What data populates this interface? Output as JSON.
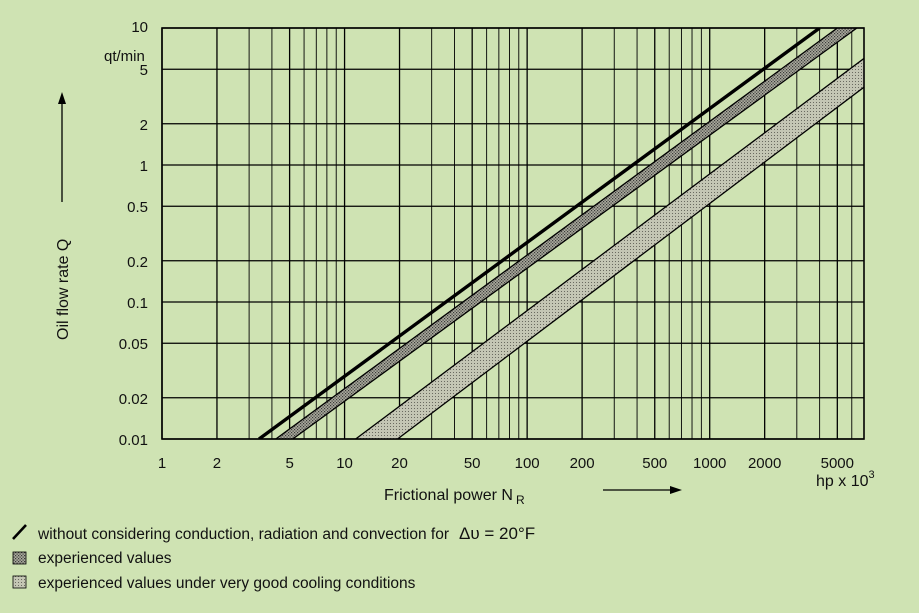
{
  "chart_data": {
    "type": "line",
    "x_scale": "log",
    "y_scale": "log",
    "xlim": [
      1,
      7000
    ],
    "ylim": [
      0.01,
      10
    ],
    "grid": true,
    "x_ticks": [
      "1",
      "2",
      "5",
      "10",
      "20",
      "50",
      "100",
      "200",
      "500",
      "1000",
      "2000",
      "5000"
    ],
    "y_ticks": [
      "10",
      "5",
      "2",
      "1",
      "0.5",
      "0.2",
      "0.1",
      "0.05",
      "0.02",
      "0.01"
    ],
    "x_minor_ticks": [
      3,
      4,
      6,
      7,
      8,
      9,
      30,
      40,
      60,
      70,
      80,
      90,
      300,
      400,
      600,
      700,
      800,
      900,
      3000,
      4000,
      6000
    ],
    "y_unit": "qt/min",
    "x_unit": "hp x 10",
    "x_unit_exp": "3",
    "xlabel": "Frictional power N",
    "xlabel_sub": "R",
    "ylabel": "Oil flow rate Q",
    "line_color": "#000000",
    "band_fill_color": "#bdbdb0",
    "series": [
      {
        "name": "without considering conduction, radiation and convection for Δυ = 20°F",
        "kind": "line",
        "x": [
          3.4,
          4000
        ],
        "y": [
          0.01,
          10
        ]
      },
      {
        "name": "experienced values",
        "kind": "band",
        "upper": {
          "x": [
            4.2,
            5000
          ],
          "y": [
            0.01,
            10
          ]
        },
        "lower": {
          "x": [
            5.2,
            6400
          ],
          "y": [
            0.01,
            10
          ]
        }
      },
      {
        "name": "experienced values under very good cooling conditions",
        "kind": "band",
        "upper": {
          "x": [
            11.5,
            7000
          ],
          "y": [
            0.01,
            6
          ]
        },
        "lower": {
          "x": [
            19.5,
            7000
          ],
          "y": [
            0.01,
            3.7
          ]
        }
      }
    ]
  },
  "legend": {
    "line_label": "without considering conduction, radiation and convection for",
    "line_formula": "Δυ = 20°F",
    "band1_label": "experienced values",
    "band2_label": "experienced values under very good cooling conditions"
  }
}
